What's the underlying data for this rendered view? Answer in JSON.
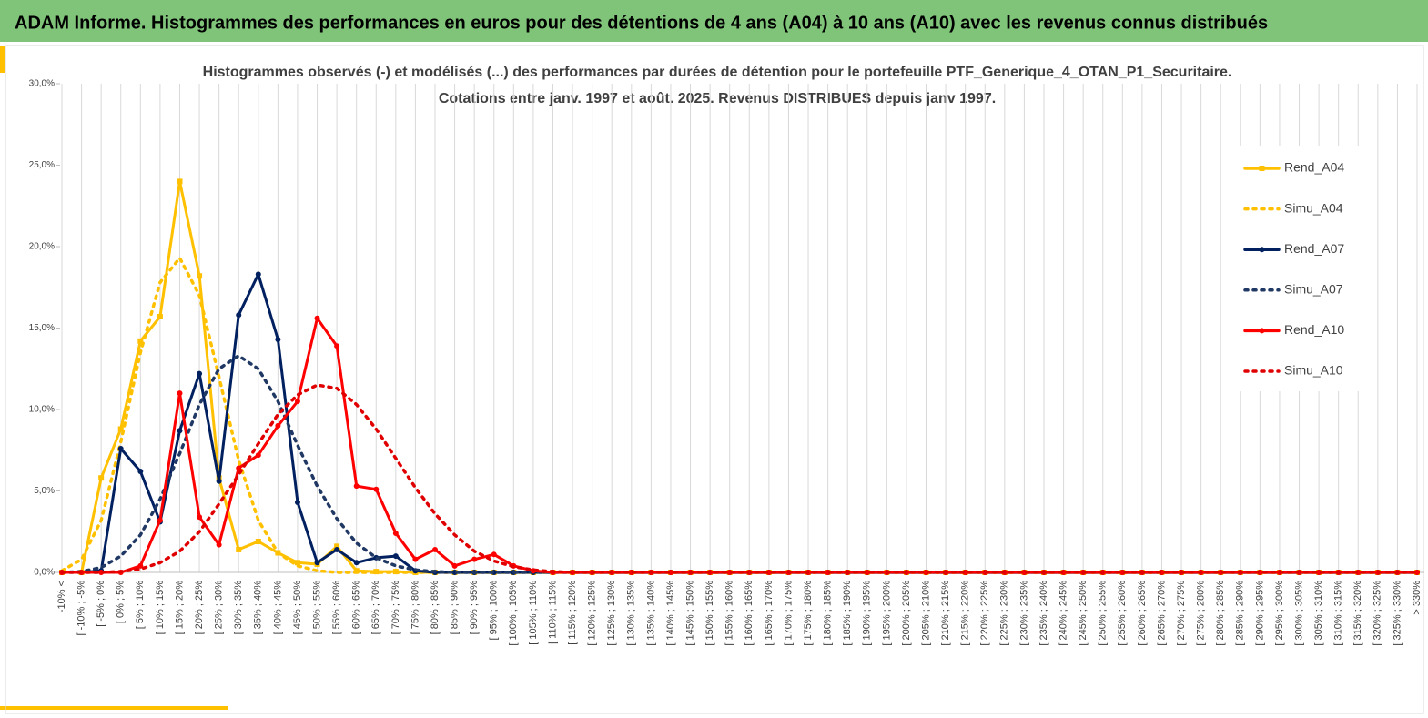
{
  "header": {
    "title": "ADAM Informe. Histogrammes des performances en euros pour des détentions de 4 ans (A04) à 10 ans (A10) avec les revenus connus distribués"
  },
  "chart_data": {
    "type": "line",
    "title": "Histogrammes observés (-) et modélisés (...) des performances par durées de détention pour le portefeuille PTF_Generique_4_OTAN_P1_Securitaire.",
    "subtitle": "Cotations entre janv. 1997 et août. 2025. Revenus DISTRIBUES depuis janv 1997.",
    "categories": [
      "-10% <",
      "[ -10% ; -5%",
      "[ -5% ; 0%",
      "[ 0% ; 5%",
      "[ 5% ; 10%",
      "[ 10% ; 15%",
      "[ 15% ; 20%",
      "[ 20% ; 25%",
      "[ 25% ; 30%",
      "[ 30% ; 35%",
      "[ 35% ; 40%",
      "[ 40% ; 45%",
      "[ 45% ; 50%",
      "[ 50% ; 55%",
      "[ 55% ; 60%",
      "[ 60% ; 65%",
      "[ 65% ; 70%",
      "[ 70% ; 75%",
      "[ 75% ; 80%",
      "[ 80% ; 85%",
      "[ 85% ; 90%",
      "[ 90% ; 95%",
      "[ 95% ; 100%",
      "[ 100% ; 105%",
      "[ 105% ; 110%",
      "[ 110% ; 115%",
      "[ 115% ; 120%",
      "[ 120% ; 125%",
      "[ 125% ; 130%",
      "[ 130% ; 135%",
      "[ 135% ; 140%",
      "[ 140% ; 145%",
      "[ 145% ; 150%",
      "[ 150% ; 155%",
      "[ 155% ; 160%",
      "[ 160% ; 165%",
      "[ 165% ; 170%",
      "[ 170% ; 175%",
      "[ 175% ; 180%",
      "[ 180% ; 185%",
      "[ 185% ; 190%",
      "[ 190% ; 195%",
      "[ 195% ; 200%",
      "[ 200% ; 205%",
      "[ 205% ; 210%",
      "[ 210% ; 215%",
      "[ 215% ; 220%",
      "[ 220% ; 225%",
      "[ 225% ; 230%",
      "[ 230% ; 235%",
      "[ 235% ; 240%",
      "[ 240% ; 245%",
      "[ 245% ; 250%",
      "[ 250% ; 255%",
      "[ 255% ; 260%",
      "[ 260% ; 265%",
      "[ 265% ; 270%",
      "[ 270% ; 275%",
      "[ 275% ; 280%",
      "[ 280% ; 285%",
      "[ 285% ; 290%",
      "[ 290% ; 295%",
      "[ 295% ; 300%",
      "[ 300% ; 305%",
      "[ 305% ; 310%",
      "[ 310% ; 315%",
      "[ 315% ; 320%",
      "[ 320% ; 325%",
      "[ 325% ; 330%",
      "> 330%"
    ],
    "series": [
      {
        "name": "Rend_A04",
        "color": "#ffc000",
        "style": "solid",
        "marker": "square",
        "values": [
          0,
          0,
          5.8,
          8.8,
          14.2,
          15.7,
          24.0,
          18.2,
          5.8,
          1.4,
          1.9,
          1.2,
          0.6,
          0.5,
          1.6,
          0.1,
          0.05,
          0.05,
          0,
          0,
          0,
          0,
          0,
          0,
          0,
          0,
          0,
          0,
          0,
          0,
          0,
          0,
          0,
          0,
          0,
          0,
          0,
          0,
          0,
          0,
          0,
          0,
          0,
          0,
          0,
          0,
          0,
          0,
          0,
          0,
          0,
          0,
          0,
          0,
          0,
          0,
          0,
          0,
          0,
          0,
          0,
          0,
          0,
          0,
          0,
          0,
          0,
          0,
          0,
          0
        ]
      },
      {
        "name": "Simu_A04",
        "color": "#ffc000",
        "style": "dotted",
        "marker": null,
        "values": [
          0.1,
          0.8,
          3.2,
          8.0,
          13.5,
          17.8,
          19.3,
          17.0,
          12.0,
          6.9,
          3.2,
          1.2,
          0.4,
          0.1,
          0,
          0,
          0,
          0,
          0,
          0,
          0,
          0,
          0,
          0,
          0,
          0,
          0,
          0,
          0,
          0,
          0,
          0,
          0,
          0,
          0,
          0,
          0,
          0,
          0,
          0,
          0,
          0,
          0,
          0,
          0,
          0,
          0,
          0,
          0,
          0,
          0,
          0,
          0,
          0,
          0,
          0,
          0,
          0,
          0,
          0,
          0,
          0,
          0,
          0,
          0,
          0,
          0,
          0,
          0,
          0
        ]
      },
      {
        "name": "Rend_A07",
        "color": "#002060",
        "style": "solid",
        "marker": "circle",
        "values": [
          0,
          0,
          0.1,
          7.6,
          6.2,
          3.1,
          8.7,
          12.2,
          5.6,
          15.8,
          18.3,
          14.3,
          4.3,
          0.6,
          1.4,
          0.6,
          0.9,
          1.0,
          0.1,
          0,
          0,
          0,
          0,
          0,
          0,
          0,
          0,
          0,
          0,
          0,
          0,
          0,
          0,
          0,
          0,
          0,
          0,
          0,
          0,
          0,
          0,
          0,
          0,
          0,
          0,
          0,
          0,
          0,
          0,
          0,
          0,
          0,
          0,
          0,
          0,
          0,
          0,
          0,
          0,
          0,
          0,
          0,
          0,
          0,
          0,
          0,
          0,
          0,
          0,
          0
        ]
      },
      {
        "name": "Simu_A07",
        "color": "#203864",
        "style": "dotted",
        "marker": null,
        "values": [
          0,
          0.05,
          0.3,
          1.0,
          2.3,
          4.5,
          7.3,
          10.3,
          12.5,
          13.3,
          12.5,
          10.5,
          7.8,
          5.3,
          3.3,
          1.8,
          0.9,
          0.4,
          0.15,
          0.05,
          0,
          0,
          0,
          0,
          0,
          0,
          0,
          0,
          0,
          0,
          0,
          0,
          0,
          0,
          0,
          0,
          0,
          0,
          0,
          0,
          0,
          0,
          0,
          0,
          0,
          0,
          0,
          0,
          0,
          0,
          0,
          0,
          0,
          0,
          0,
          0,
          0,
          0,
          0,
          0,
          0,
          0,
          0,
          0,
          0,
          0,
          0,
          0,
          0,
          0
        ]
      },
      {
        "name": "Rend_A10",
        "color": "#ff0000",
        "style": "solid",
        "marker": "circle",
        "values": [
          0,
          0,
          0,
          0,
          0.4,
          3.2,
          11.0,
          3.4,
          1.7,
          6.4,
          7.2,
          9.0,
          10.5,
          15.6,
          13.9,
          5.3,
          5.1,
          2.4,
          0.8,
          1.4,
          0.4,
          0.8,
          1.1,
          0.4,
          0.1,
          0,
          0,
          0,
          0,
          0,
          0,
          0,
          0,
          0,
          0,
          0,
          0,
          0,
          0,
          0,
          0,
          0,
          0,
          0,
          0,
          0,
          0,
          0,
          0,
          0,
          0,
          0,
          0,
          0,
          0,
          0,
          0,
          0,
          0,
          0,
          0,
          0,
          0,
          0,
          0,
          0,
          0,
          0,
          0,
          0
        ]
      },
      {
        "name": "Simu_A10",
        "color": "#e00000",
        "style": "dotted",
        "marker": null,
        "values": [
          0,
          0,
          0,
          0.05,
          0.2,
          0.6,
          1.3,
          2.5,
          4.2,
          6.0,
          7.9,
          9.7,
          10.9,
          11.5,
          11.3,
          10.3,
          8.8,
          7.0,
          5.2,
          3.6,
          2.3,
          1.3,
          0.7,
          0.35,
          0.15,
          0.05,
          0,
          0,
          0,
          0,
          0,
          0,
          0,
          0,
          0,
          0,
          0,
          0,
          0,
          0,
          0,
          0,
          0,
          0,
          0,
          0,
          0,
          0,
          0,
          0,
          0,
          0,
          0,
          0,
          0,
          0,
          0,
          0,
          0,
          0,
          0,
          0,
          0,
          0,
          0,
          0,
          0,
          0,
          0,
          0
        ]
      }
    ],
    "ylim": [
      0,
      30
    ],
    "yticks": [
      {
        "value": 0,
        "label": "0,0%"
      },
      {
        "value": 5,
        "label": "5,0%"
      },
      {
        "value": 10,
        "label": "10,0%"
      },
      {
        "value": 15,
        "label": "15,0%"
      },
      {
        "value": 20,
        "label": "20,0%"
      },
      {
        "value": 25,
        "label": "25,0%"
      },
      {
        "value": 30,
        "label": "30,0%"
      }
    ],
    "grid": "vertical",
    "legend": "right"
  }
}
